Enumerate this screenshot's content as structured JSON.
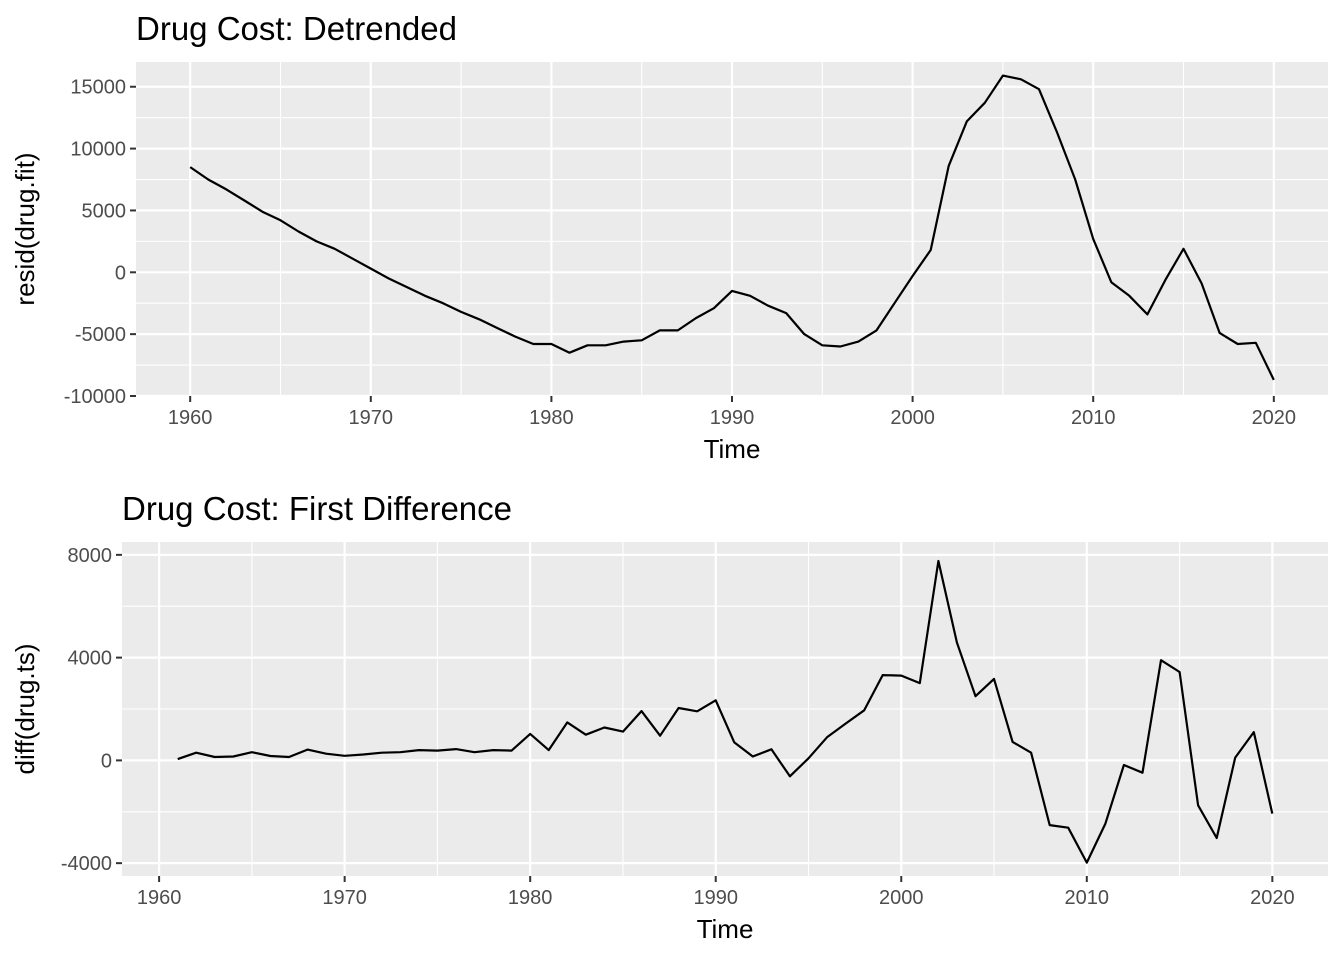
{
  "chart_data": [
    {
      "type": "line",
      "title": "Drug Cost: Detrended",
      "xlabel": "Time",
      "ylabel": "resid(drug.fit)",
      "xlim": [
        1957,
        2023
      ],
      "ylim": [
        -10000,
        17000
      ],
      "x_ticks": [
        1960,
        1970,
        1980,
        1990,
        2000,
        2010,
        2020
      ],
      "x_tick_labels": [
        "1960",
        "1970",
        "1980",
        "1990",
        "2000",
        "2010",
        "2020"
      ],
      "y_ticks": [
        -10000,
        -5000,
        0,
        5000,
        10000,
        15000
      ],
      "y_tick_labels": [
        "-10000",
        "-5000",
        "0",
        "5000",
        "10000",
        "15000"
      ],
      "grid": true,
      "series": [
        {
          "x": [
            1960,
            1961,
            1962,
            1963,
            1964,
            1965,
            1966,
            1967,
            1968,
            1969,
            1970,
            1971,
            1972,
            1973,
            1974,
            1975,
            1976,
            1977,
            1978,
            1979,
            1980,
            1981,
            1982,
            1983,
            1984,
            1985,
            1986,
            1987,
            1988,
            1989,
            1990,
            1991,
            1992,
            1993,
            1994,
            1995,
            1996,
            1997,
            1998,
            1999,
            2000,
            2001,
            2002,
            2003,
            2004,
            2005,
            2006,
            2007,
            2008,
            2009,
            2010,
            2011,
            2012,
            2013,
            2014,
            2015,
            2016,
            2017,
            2018,
            2019,
            2020
          ],
          "values": [
            8500,
            7500,
            6700,
            5800,
            4900,
            4200,
            3300,
            2500,
            1900,
            1100,
            300,
            -500,
            -1200,
            -1900,
            -2500,
            -3200,
            -3800,
            -4500,
            -5200,
            -5800,
            -5800,
            -6500,
            -5900,
            -5900,
            -5600,
            -5500,
            -4700,
            -4700,
            -3700,
            -2900,
            -1500,
            -1900,
            -2700,
            -3300,
            -5000,
            -5900,
            -6000,
            -5600,
            -4700,
            -2500,
            -300,
            1800,
            8600,
            12200,
            13700,
            15900,
            15600,
            14800,
            11300,
            7500,
            2700,
            -800,
            -1900,
            -3400,
            -600,
            1900,
            -900,
            -4900,
            -5800,
            -5700,
            -8700
          ]
        }
      ]
    },
    {
      "type": "line",
      "title": "Drug Cost: First Difference",
      "xlabel": "Time",
      "ylabel": "diff(drug.ts)",
      "xlim": [
        1958,
        2023
      ],
      "ylim": [
        -4500,
        8500
      ],
      "x_ticks": [
        1960,
        1970,
        1980,
        1990,
        2000,
        2010,
        2020
      ],
      "x_tick_labels": [
        "1960",
        "1970",
        "1980",
        "1990",
        "2000",
        "2010",
        "2020"
      ],
      "y_ticks": [
        -4000,
        0,
        4000,
        8000
      ],
      "y_tick_labels": [
        "-4000",
        "0",
        "4000",
        "8000"
      ],
      "grid": true,
      "series": [
        {
          "x": [
            1961,
            1962,
            1963,
            1964,
            1965,
            1966,
            1967,
            1968,
            1969,
            1970,
            1971,
            1972,
            1973,
            1974,
            1975,
            1976,
            1977,
            1978,
            1979,
            1980,
            1981,
            1982,
            1983,
            1984,
            1985,
            1986,
            1987,
            1988,
            1989,
            1990,
            1991,
            1992,
            1993,
            1994,
            1995,
            1996,
            1997,
            1998,
            1999,
            2000,
            2001,
            2002,
            2003,
            2004,
            2005,
            2006,
            2007,
            2008,
            2009,
            2010,
            2011,
            2012,
            2013,
            2014,
            2015,
            2016,
            2017,
            2018,
            2019,
            2020
          ],
          "values": [
            50,
            300,
            130,
            150,
            320,
            170,
            130,
            420,
            260,
            180,
            230,
            300,
            320,
            400,
            380,
            440,
            320,
            400,
            380,
            1030,
            400,
            1480,
            1000,
            1280,
            1120,
            1920,
            960,
            2040,
            1910,
            2340,
            700,
            150,
            430,
            -620,
            80,
            900,
            1430,
            1950,
            3320,
            3300,
            3010,
            7760,
            4590,
            2500,
            3170,
            720,
            300,
            -2520,
            -2620,
            -3980,
            -2460,
            -180,
            -480,
            3900,
            3440,
            -1750,
            -3020,
            110,
            1100,
            -2070
          ]
        }
      ]
    }
  ]
}
